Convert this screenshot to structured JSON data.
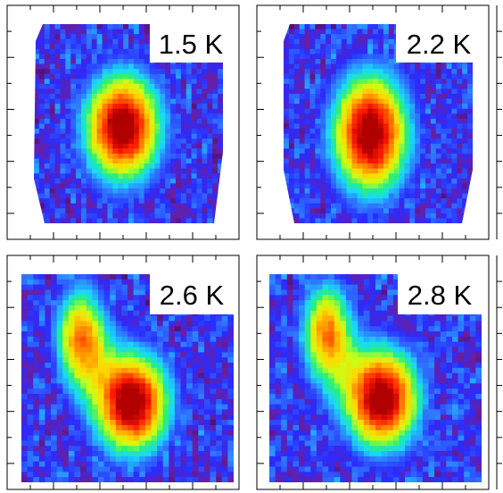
{
  "chart_data": [
    {
      "type": "heatmap",
      "panel_label": "1.5 K",
      "x_ticks": 10,
      "y_ticks": 9,
      "colormap": [
        "#3a0a55",
        "#6a1fa0",
        "#2a2bff",
        "#2f78ff",
        "#19d8ff",
        "#28f07a",
        "#c8ff16",
        "#ffd800",
        "#ff7a00",
        "#ff1a00",
        "#b00000"
      ],
      "peaks": [
        {
          "x": 0.47,
          "y": 0.52,
          "amplitude": 1.0,
          "sigma_x": 0.15,
          "sigma_y": 0.2
        }
      ],
      "background_level": 0.2
    },
    {
      "type": "heatmap",
      "panel_label": "2.2 K",
      "x_ticks": 10,
      "y_ticks": 9,
      "colormap": [
        "#3a0a55",
        "#6a1fa0",
        "#2a2bff",
        "#2f78ff",
        "#19d8ff",
        "#28f07a",
        "#c8ff16",
        "#ffd800",
        "#ff7a00",
        "#ff1a00",
        "#b00000"
      ],
      "peaks": [
        {
          "x": 0.46,
          "y": 0.55,
          "amplitude": 1.0,
          "sigma_x": 0.15,
          "sigma_y": 0.22
        }
      ],
      "background_level": 0.2
    },
    {
      "type": "heatmap",
      "panel_label": "2.6 K",
      "x_ticks": 10,
      "y_ticks": 9,
      "colormap": [
        "#3a0a55",
        "#6a1fa0",
        "#2a2bff",
        "#2f78ff",
        "#19d8ff",
        "#28f07a",
        "#c8ff16",
        "#ffd800",
        "#ff7a00",
        "#ff1a00",
        "#b00000"
      ],
      "peaks": [
        {
          "x": 0.28,
          "y": 0.3,
          "amplitude": 0.72,
          "sigma_x": 0.09,
          "sigma_y": 0.18
        },
        {
          "x": 0.52,
          "y": 0.62,
          "amplitude": 1.0,
          "sigma_x": 0.13,
          "sigma_y": 0.18
        }
      ],
      "background_level": 0.2
    },
    {
      "type": "heatmap",
      "panel_label": "2.8 K",
      "x_ticks": 10,
      "y_ticks": 9,
      "colormap": [
        "#3a0a55",
        "#6a1fa0",
        "#2a2bff",
        "#2f78ff",
        "#19d8ff",
        "#28f07a",
        "#c8ff16",
        "#ffd800",
        "#ff7a00",
        "#ff1a00",
        "#b00000"
      ],
      "peaks": [
        {
          "x": 0.27,
          "y": 0.28,
          "amplitude": 0.72,
          "sigma_x": 0.09,
          "sigma_y": 0.18
        },
        {
          "x": 0.53,
          "y": 0.6,
          "amplitude": 1.0,
          "sigma_x": 0.13,
          "sigma_y": 0.18
        }
      ],
      "background_level": 0.2
    }
  ]
}
